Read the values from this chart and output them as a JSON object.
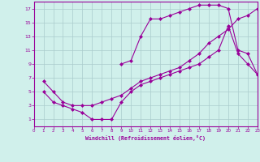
{
  "bg_color": "#d0f0eb",
  "grid_color": "#aacccc",
  "line_color": "#990099",
  "marker_color": "#990099",
  "xlabel": "Windchill (Refroidissement éolien,°C)",
  "xlim": [
    0,
    23
  ],
  "ylim": [
    0,
    18
  ],
  "xticks": [
    0,
    1,
    2,
    3,
    4,
    5,
    6,
    7,
    8,
    9,
    10,
    11,
    12,
    13,
    14,
    15,
    16,
    17,
    18,
    19,
    20,
    21,
    22,
    23
  ],
  "yticks": [
    1,
    3,
    5,
    7,
    9,
    11,
    13,
    15,
    17
  ],
  "line1_x": [
    1,
    2,
    3,
    4,
    5,
    6,
    7,
    8,
    9,
    10,
    11,
    12,
    13,
    14,
    15,
    16,
    17,
    18,
    19,
    20,
    21,
    22,
    23
  ],
  "line1_y": [
    5,
    3.5,
    3,
    2.5,
    2,
    1,
    1,
    1,
    3.5,
    5,
    6,
    6.5,
    7,
    7.5,
    8,
    8.5,
    9,
    10,
    11,
    14.5,
    10.5,
    9,
    7.5
  ],
  "line2_x": [
    1,
    2,
    3,
    4,
    5,
    6,
    7,
    8,
    9,
    10,
    11,
    12,
    13,
    14,
    15,
    16,
    17,
    18,
    19,
    20,
    21,
    22,
    23
  ],
  "line2_y": [
    6.5,
    5,
    3.5,
    3,
    3,
    3,
    3.5,
    4,
    4.5,
    5.5,
    6.5,
    7,
    7.5,
    8,
    8.5,
    9.5,
    10.5,
    12,
    13,
    14,
    15.5,
    16,
    17
  ],
  "line3_x": [
    9,
    10,
    11,
    12,
    13,
    14,
    15,
    16,
    17,
    18,
    19,
    20,
    21,
    22,
    23
  ],
  "line3_y": [
    9,
    9.5,
    13,
    15.5,
    15.5,
    16,
    16.5,
    17,
    17.5,
    17.5,
    17.5,
    17,
    11,
    10.5,
    7.5
  ]
}
